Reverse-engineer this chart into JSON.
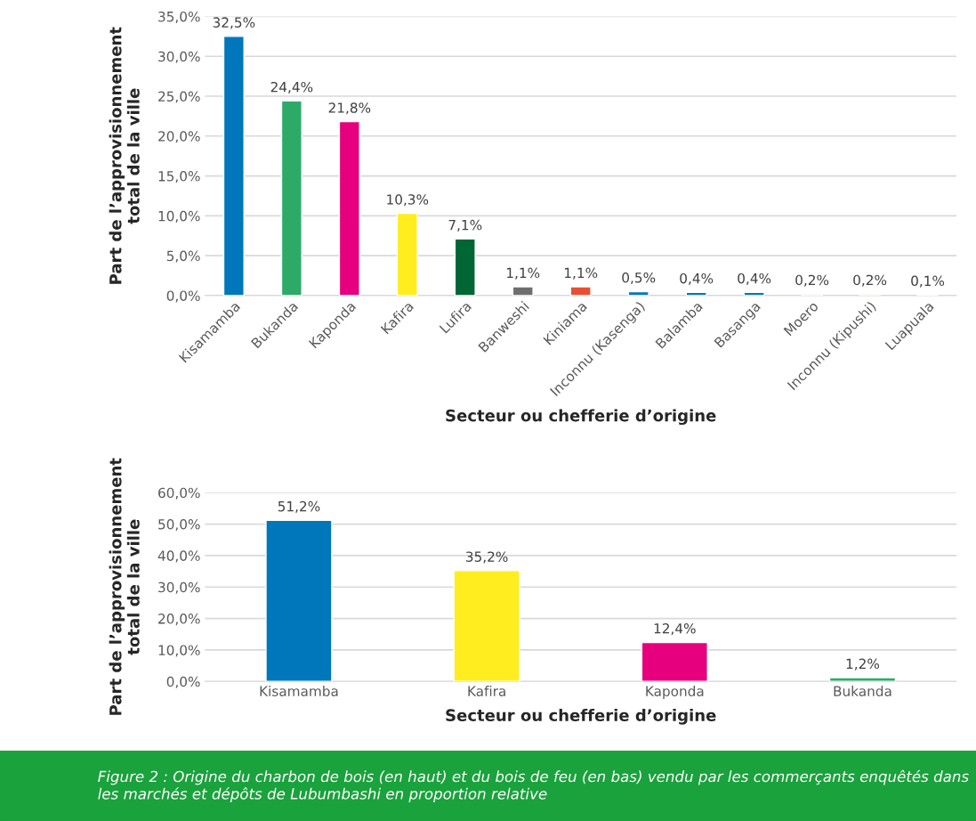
{
  "chart_data": [
    {
      "type": "bar",
      "xlabel": "Secteur ou chefferie d’origine",
      "ylabel": "Part de l’approvisionnement\ntotal de la ville",
      "categories": [
        "Kisamamba",
        "Bukanda",
        "Kaponda",
        "Kafira",
        "Lufira",
        "Banweshi",
        "Kiniama",
        "Inconnu (Kasenga)",
        "Balamba",
        "Basanga",
        "Moero",
        "Inconnu (Kipushi)",
        "Luapuala"
      ],
      "values": [
        32.5,
        24.4,
        21.8,
        10.3,
        7.1,
        1.1,
        1.1,
        0.5,
        0.4,
        0.4,
        0.2,
        0.2,
        0.1
      ],
      "colors": [
        "#0077bb",
        "#2eaa68",
        "#e6007e",
        "#ffed1f",
        "#006633",
        "#6e6e6e",
        "#e84e31",
        "#0077bb",
        "#0077bb",
        "#0077bb",
        "#f2e3d5",
        "#f2e3d5",
        "#f2e3d5"
      ],
      "value_labels": [
        "32,5%",
        "24,4%",
        "21,8%",
        "10,3%",
        "7,1%",
        "1,1%",
        "1,1%",
        "0,5%",
        "0,4%",
        "0,4%",
        "0,2%",
        "0,2%",
        "0,1%"
      ],
      "ylim": [
        0,
        35
      ],
      "yticks": [
        {
          "value": 0,
          "label": "0,0%"
        },
        {
          "value": 5,
          "label": "5,0%"
        },
        {
          "value": 10,
          "label": "10,0%"
        },
        {
          "value": 15,
          "label": "15,0%"
        },
        {
          "value": 20,
          "label": "20,0%"
        },
        {
          "value": 25,
          "label": "25,0%"
        },
        {
          "value": 30,
          "label": "30,0%"
        },
        {
          "value": 35,
          "label": "35,0%"
        }
      ],
      "grid": "y",
      "legend": false
    },
    {
      "type": "bar",
      "xlabel": "Secteur ou chefferie d’origine",
      "ylabel": "Part de l’approvisionnement\ntotal de la ville",
      "categories": [
        "Kisamamba",
        "Kafira",
        "Kaponda",
        "Bukanda"
      ],
      "values": [
        51.2,
        35.2,
        12.4,
        1.2
      ],
      "colors": [
        "#0077bb",
        "#ffed1f",
        "#e6007e",
        "#2eaa68"
      ],
      "value_labels": [
        "51,2%",
        "35,2%",
        "12,4%",
        "1,2%"
      ],
      "ylim": [
        0,
        60
      ],
      "yticks": [
        {
          "value": 0,
          "label": "0,0%"
        },
        {
          "value": 10,
          "label": "10,0%"
        },
        {
          "value": 20,
          "label": "20,0%"
        },
        {
          "value": 30,
          "label": "30,0%"
        },
        {
          "value": 40,
          "label": "40,0%"
        },
        {
          "value": 50,
          "label": "50,0%"
        },
        {
          "value": 60,
          "label": "60,0%"
        }
      ],
      "grid": "y",
      "legend": false,
      "annotations": [
        "Figure 2 : Origine du charbon de bois (en haut) et du bois de feu (en bas) vendu par les commerçants enquêtés dans les marchés et dépôts de Lubumbashi en proportion relative"
      ]
    }
  ]
}
